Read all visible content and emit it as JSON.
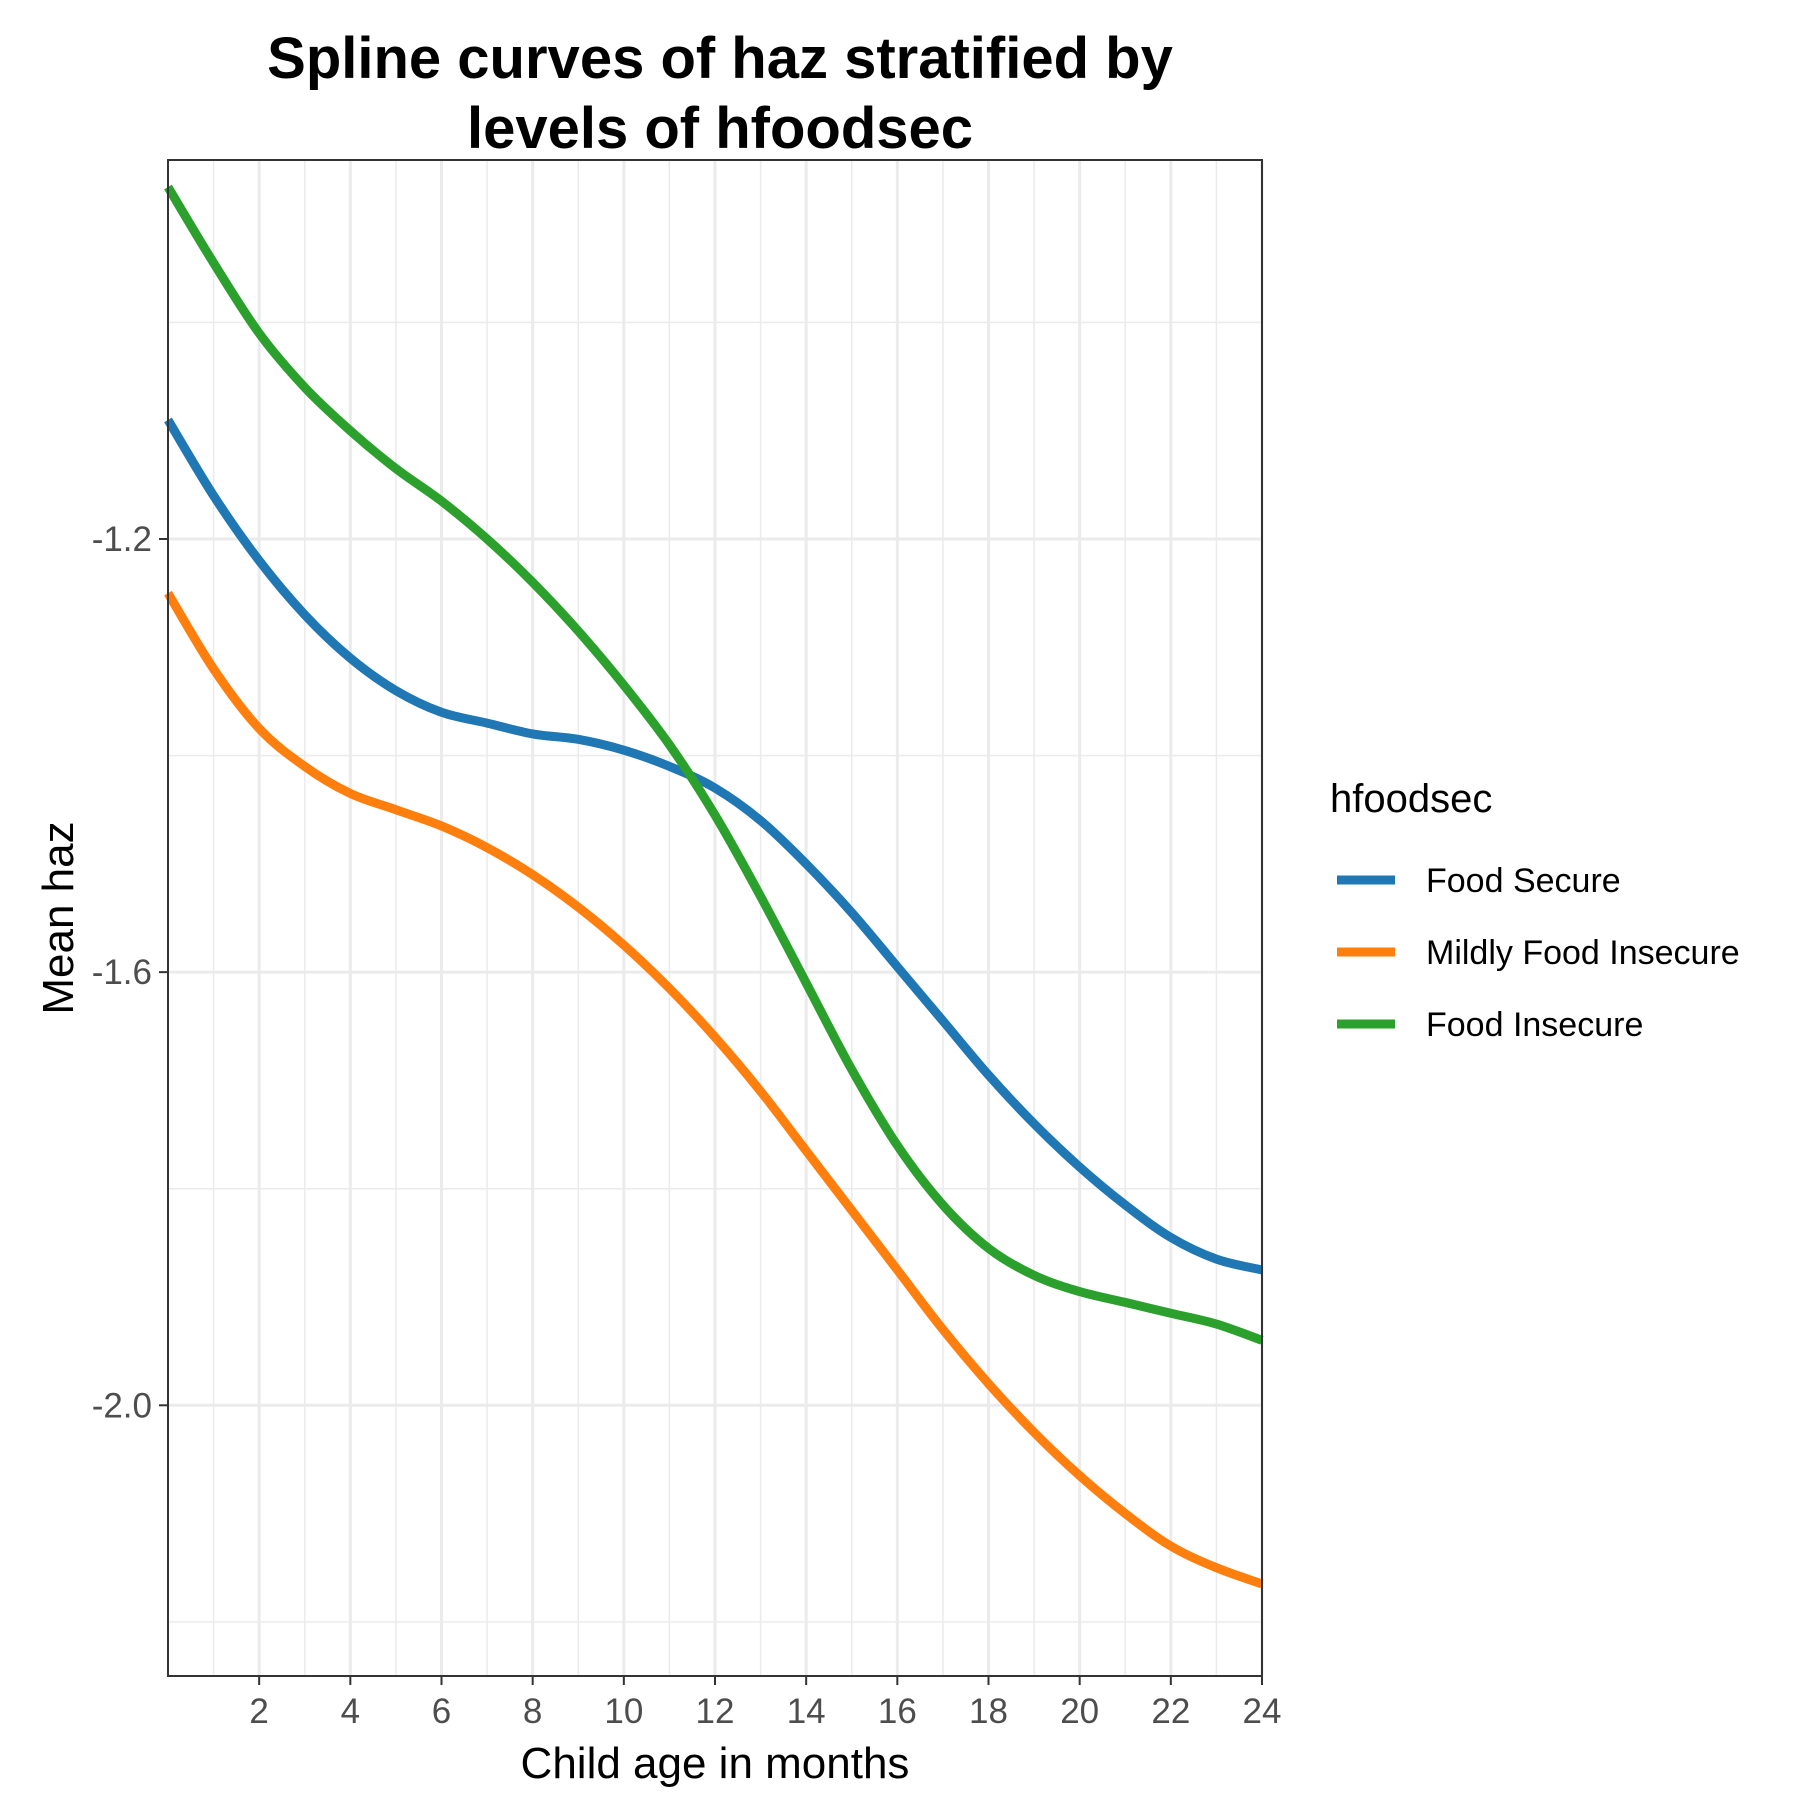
{
  "chart_data": {
    "type": "line",
    "title": [
      "Spline curves of haz stratified by",
      "levels of hfoodsec"
    ],
    "xlabel": "Child age in months",
    "ylabel": "Mean haz",
    "xlim": [
      0,
      24
    ],
    "ylim": [
      -2.25,
      -0.85
    ],
    "x_ticks": [
      2,
      4,
      6,
      8,
      10,
      12,
      14,
      16,
      18,
      20,
      22,
      24
    ],
    "y_ticks": [
      -1.2,
      -1.6,
      -2.0
    ],
    "y_tick_labels": [
      "-1.2",
      "-1.6",
      "-2.0"
    ],
    "grid": true,
    "legend": {
      "title": "hfoodsec",
      "position": "right"
    },
    "series": [
      {
        "name": "Food Secure",
        "color": "#1f77b4",
        "x": [
          0,
          1,
          2,
          3,
          4,
          5,
          6,
          7,
          8,
          9,
          10,
          11,
          12,
          13,
          14,
          15,
          16,
          17,
          18,
          19,
          20,
          21,
          22,
          23,
          24
        ],
        "y": [
          -1.09,
          -1.16,
          -1.22,
          -1.27,
          -1.31,
          -1.34,
          -1.36,
          -1.37,
          -1.38,
          -1.385,
          -1.395,
          -1.41,
          -1.43,
          -1.46,
          -1.5,
          -1.545,
          -1.595,
          -1.645,
          -1.695,
          -1.74,
          -1.78,
          -1.815,
          -1.845,
          -1.865,
          -1.875
        ]
      },
      {
        "name": "Mildly Food Insecure",
        "color": "#ff7f0e",
        "x": [
          0,
          1,
          2,
          3,
          4,
          5,
          6,
          7,
          8,
          9,
          10,
          11,
          12,
          13,
          14,
          15,
          16,
          17,
          18,
          19,
          20,
          21,
          22,
          23,
          24
        ],
        "y": [
          -1.25,
          -1.32,
          -1.375,
          -1.41,
          -1.435,
          -1.45,
          -1.465,
          -1.485,
          -1.51,
          -1.54,
          -1.575,
          -1.615,
          -1.66,
          -1.71,
          -1.765,
          -1.82,
          -1.875,
          -1.93,
          -1.98,
          -2.025,
          -2.065,
          -2.1,
          -2.13,
          -2.15,
          -2.165
        ]
      },
      {
        "name": "Food Insecure",
        "color": "#2ca02c",
        "x": [
          0,
          1,
          2,
          3,
          4,
          5,
          6,
          7,
          8,
          9,
          10,
          11,
          12,
          13,
          14,
          15,
          16,
          17,
          18,
          19,
          20,
          21,
          22,
          23,
          24
        ],
        "y": [
          -0.875,
          -0.945,
          -1.01,
          -1.06,
          -1.1,
          -1.135,
          -1.165,
          -1.2,
          -1.24,
          -1.285,
          -1.335,
          -1.39,
          -1.455,
          -1.53,
          -1.61,
          -1.69,
          -1.76,
          -1.815,
          -1.855,
          -1.88,
          -1.895,
          -1.905,
          -1.915,
          -1.925,
          -1.94
        ]
      }
    ]
  }
}
